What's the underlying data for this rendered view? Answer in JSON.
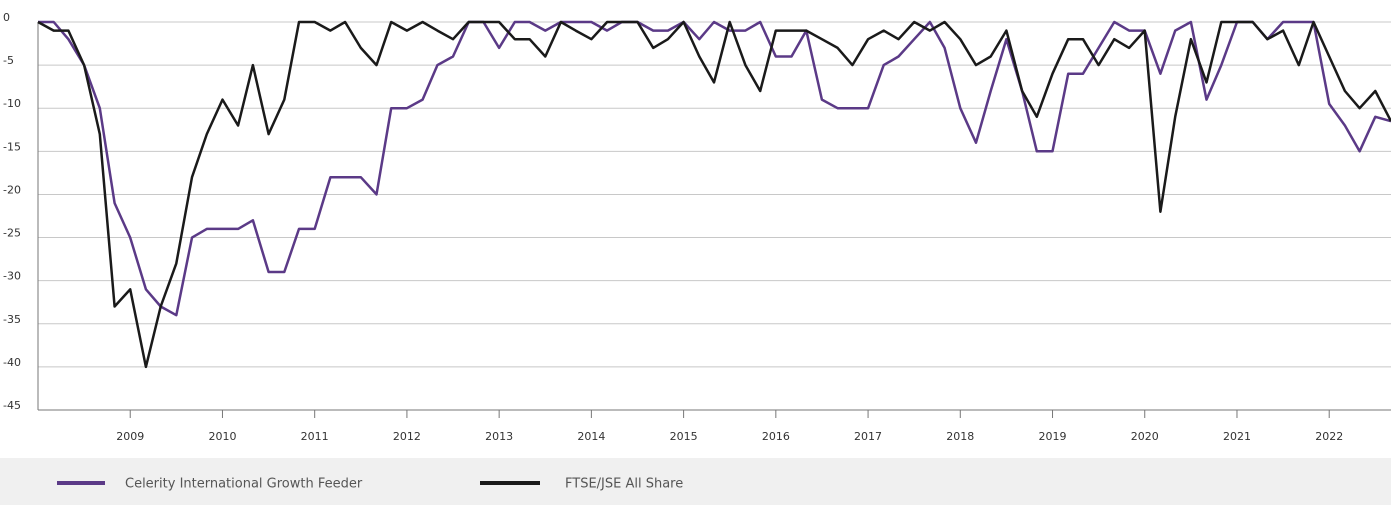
{
  "chart_data": {
    "type": "line",
    "x": [
      2008,
      2008.17,
      2008.33,
      2008.5,
      2008.67,
      2008.83,
      2009,
      2009.17,
      2009.33,
      2009.5,
      2009.67,
      2009.83,
      2010,
      2010.17,
      2010.33,
      2010.5,
      2010.67,
      2010.83,
      2011,
      2011.17,
      2011.33,
      2011.5,
      2011.67,
      2011.83,
      2012,
      2012.17,
      2012.33,
      2012.5,
      2012.67,
      2012.83,
      2013,
      2013.17,
      2013.33,
      2013.5,
      2013.67,
      2013.83,
      2014,
      2014.17,
      2014.33,
      2014.5,
      2014.67,
      2014.83,
      2015,
      2015.17,
      2015.33,
      2015.5,
      2015.67,
      2015.83,
      2016,
      2016.17,
      2016.33,
      2016.5,
      2016.67,
      2016.83,
      2017,
      2017.17,
      2017.33,
      2017.5,
      2017.67,
      2017.83,
      2018,
      2018.17,
      2018.33,
      2018.5,
      2018.67,
      2018.83,
      2019,
      2019.17,
      2019.33,
      2019.5,
      2019.67,
      2019.83,
      2020,
      2020.17,
      2020.33,
      2020.5,
      2020.67,
      2020.83,
      2021,
      2021.17,
      2021.33,
      2021.5,
      2021.67,
      2021.83,
      2022,
      2022.17,
      2022.33,
      2022.5,
      2022.67
    ],
    "series": [
      {
        "name": "Celerity International Growth Feeder",
        "color": "#5b3a87",
        "values": [
          0,
          0,
          -2,
          -5,
          -10,
          -21,
          -25,
          -31,
          -33,
          -34,
          -25,
          -24,
          -24,
          -24,
          -23,
          -29,
          -29,
          -24,
          -24,
          -18,
          -18,
          -18,
          -20,
          -10,
          -10,
          -9,
          -5,
          -4,
          0,
          0,
          -3,
          0,
          0,
          -1,
          0,
          0,
          0,
          -1,
          0,
          0,
          -1,
          -1,
          0,
          -2,
          0,
          -1,
          -1,
          0,
          -4,
          -4,
          -1,
          -9,
          -10,
          -10,
          -10,
          -5,
          -4,
          -2,
          0,
          -3,
          -10,
          -14,
          -8,
          -2,
          -8,
          -15,
          -15,
          -6,
          -6,
          -3,
          0,
          -1,
          -1,
          -6,
          -1,
          0,
          -9,
          -5,
          0,
          0,
          -2,
          0,
          0,
          0,
          -9.5,
          -12,
          -15,
          -11,
          -11.5
        ]
      },
      {
        "name": "FTSE/JSE All Share",
        "color": "#1a1a1a",
        "values": [
          0,
          -1,
          -1,
          -5,
          -13,
          -33,
          -31,
          -40,
          -33,
          -28,
          -18,
          -13,
          -9,
          -12,
          -5,
          -13,
          -9,
          0,
          0,
          -1,
          0,
          -3,
          -5,
          0,
          -1,
          0,
          -1,
          -2,
          0,
          0,
          0,
          -2,
          -2,
          -4,
          0,
          -1,
          -2,
          0,
          0,
          0,
          -3,
          -2,
          0,
          -4,
          -7,
          0,
          -5,
          -8,
          -1,
          -1,
          -1,
          -2,
          -3,
          -5,
          -2,
          -1,
          -2,
          0,
          -1,
          0,
          -2,
          -5,
          -4,
          -1,
          -8,
          -11,
          -6,
          -2,
          -2,
          -5,
          -2,
          -3,
          -1,
          -22,
          -11,
          -2,
          -7,
          0,
          0,
          0,
          -2,
          -1,
          -5,
          0,
          -4,
          -8,
          -10,
          -8,
          -11.5
        ]
      }
    ],
    "xlim": [
      2008,
      2022.67
    ],
    "xticks": [
      2009,
      2010,
      2011,
      2012,
      2013,
      2014,
      2015,
      2016,
      2017,
      2018,
      2019,
      2020,
      2021,
      2022
    ],
    "ylim": [
      -45,
      0
    ],
    "yticks": [
      0,
      -5,
      -10,
      -15,
      -20,
      -25,
      -30,
      -35,
      -40,
      -45
    ],
    "grid": true
  }
}
